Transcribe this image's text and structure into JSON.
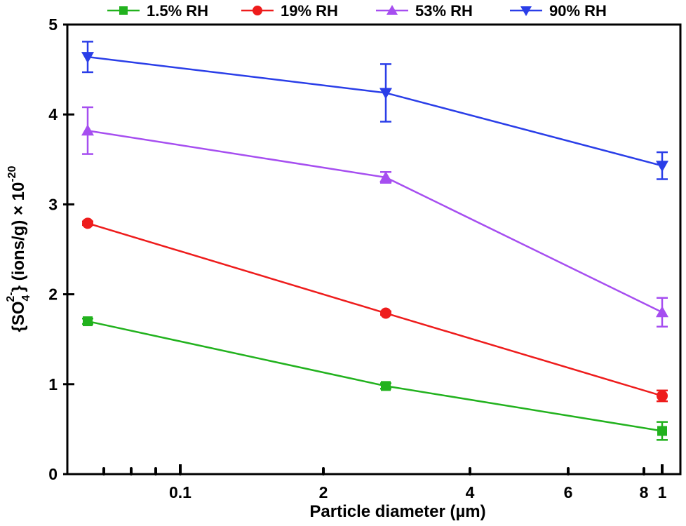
{
  "chart_data": {
    "type": "line",
    "xlabel": "Particle diameter (µm)",
    "ylabel_parts": {
      "open": "{SO",
      "sub": "4",
      "sup": "2-",
      "rest": "} (ions/g) × 10",
      "exp": "-20"
    },
    "x_positions": [
      0,
      1,
      2
    ],
    "x_tick_labels": [
      "0.1",
      "2",
      "4",
      "6",
      "8",
      "1"
    ],
    "ylim": [
      0,
      5
    ],
    "y_ticks": [
      0,
      1,
      2,
      3,
      4,
      5
    ],
    "legend_position": "top",
    "series": [
      {
        "name": "1.5% RH",
        "color": "#22b21e",
        "marker": "square",
        "values": [
          1.7,
          0.98,
          0.48
        ],
        "errors": [
          0.03,
          0.03,
          0.1
        ]
      },
      {
        "name": "19% RH",
        "color": "#ee1c1c",
        "marker": "circle",
        "values": [
          2.79,
          1.79,
          0.87
        ],
        "errors": [
          0.02,
          0.02,
          0.06
        ]
      },
      {
        "name": "53% RH",
        "color": "#a64ef0",
        "marker": "triangle-up",
        "values": [
          3.82,
          3.3,
          1.8
        ],
        "errors": [
          0.26,
          0.06,
          0.16
        ]
      },
      {
        "name": "90% RH",
        "color": "#2a3ee8",
        "marker": "triangle-down",
        "values": [
          4.64,
          4.24,
          3.43
        ],
        "errors": [
          0.17,
          0.32,
          0.15
        ]
      }
    ]
  }
}
